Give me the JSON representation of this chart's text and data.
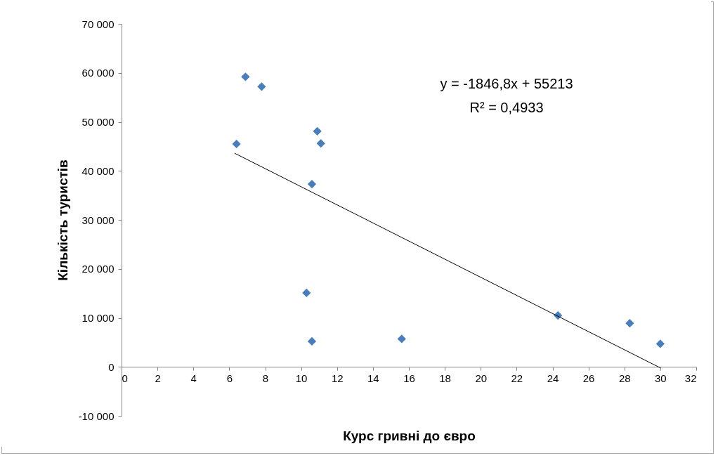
{
  "chart_data": {
    "type": "scatter",
    "xlabel": "Курс гривні до євро",
    "ylabel": "Кількість туристів",
    "xlim": [
      0,
      32
    ],
    "xticks": [
      0,
      2,
      4,
      6,
      8,
      10,
      12,
      14,
      16,
      18,
      20,
      22,
      24,
      26,
      28,
      30,
      32
    ],
    "ylim": [
      -10000,
      70000
    ],
    "yticks": [
      {
        "value": -10000,
        "label": "-10 000"
      },
      0,
      {
        "value": 10000,
        "label": "10 000"
      },
      {
        "value": 20000,
        "label": "20 000"
      },
      {
        "value": 30000,
        "label": "30 000"
      },
      {
        "value": 40000,
        "label": "40 000"
      },
      {
        "value": 50000,
        "label": "50 000"
      },
      {
        "value": 60000,
        "label": "60 000"
      },
      {
        "value": 70000,
        "label": "70 000"
      }
    ],
    "grid": false,
    "marker": "diamond",
    "series": [
      {
        "color": "#4a7ebb",
        "x": [
          6.4,
          6.9,
          7.8,
          10.9,
          11.1,
          10.6,
          10.3,
          10.6,
          15.6,
          24.3,
          28.3,
          30.0
        ],
        "values": [
          45500,
          59200,
          57200,
          48100,
          45600,
          37300,
          15100,
          5200,
          5700,
          10500,
          8900,
          4700
        ]
      },
      {
        "type": "line",
        "marker": "none",
        "color": "#000000",
        "x": [
          6.3,
          30
        ],
        "values": [
          43600,
          -200
        ]
      }
    ],
    "annotations": [
      "y = -1846,8x  + 55213",
      "R² = 0,4933"
    ]
  }
}
